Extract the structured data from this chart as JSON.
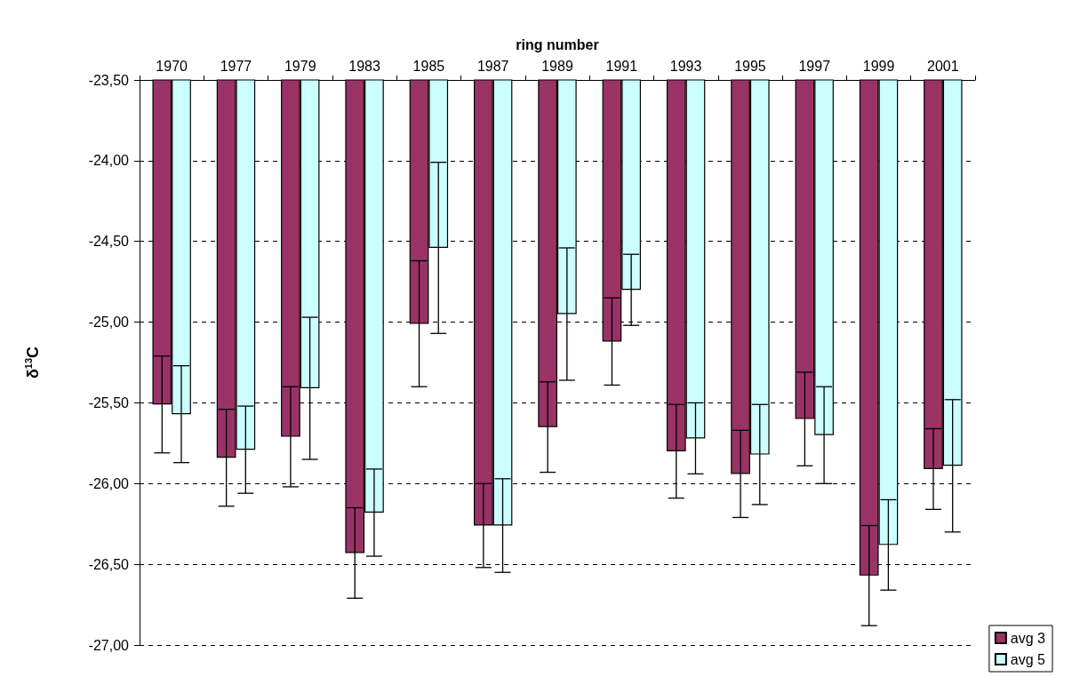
{
  "chart_data": {
    "type": "bar",
    "xlabel": "ring number",
    "ylabel": "δ$^{13}$C",
    "categories": [
      "1970",
      "1977",
      "1979",
      "1983",
      "1985",
      "1987",
      "1989",
      "1991",
      "1993",
      "1995",
      "1997",
      "1999",
      "2001"
    ],
    "series": [
      {
        "name": "avg 3",
        "color": "#993366",
        "values": [
          -25.51,
          -25.84,
          -25.71,
          -26.43,
          -25.01,
          -26.26,
          -25.65,
          -25.12,
          -25.8,
          -25.94,
          -25.6,
          -26.57,
          -25.91
        ],
        "errors": [
          0.3,
          0.3,
          0.31,
          0.28,
          0.39,
          0.26,
          0.28,
          0.27,
          0.29,
          0.27,
          0.29,
          0.31,
          0.25
        ]
      },
      {
        "name": "avg 5",
        "color": "#ccffff",
        "values": [
          -25.57,
          -25.79,
          -25.41,
          -26.18,
          -24.54,
          -26.26,
          -24.95,
          -24.8,
          -25.72,
          -25.82,
          -25.7,
          -26.38,
          -25.89
        ],
        "errors": [
          0.3,
          0.27,
          0.44,
          0.27,
          0.53,
          0.29,
          0.41,
          0.22,
          0.22,
          0.31,
          0.3,
          0.28,
          0.41
        ]
      }
    ],
    "ylim": [
      -27,
      -23.5
    ],
    "yticks": [
      {
        "value": -27,
        "label": "-27,00"
      },
      {
        "value": -26.5,
        "label": "-26,50"
      },
      {
        "value": -26,
        "label": "-26,00"
      },
      {
        "value": -25.5,
        "label": "-25,50"
      },
      {
        "value": -25,
        "label": "-25,00"
      },
      {
        "value": -24.5,
        "label": "-24,50"
      },
      {
        "value": -24,
        "label": "-24,00"
      },
      {
        "value": -23.5,
        "label": "-23,50"
      }
    ],
    "grid": "y",
    "legend": "bottom right"
  }
}
